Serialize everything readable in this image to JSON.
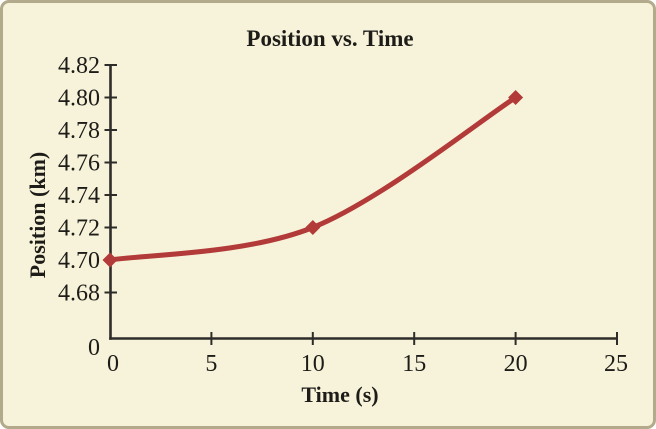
{
  "chart_data": {
    "type": "line",
    "title": "Position vs. Time",
    "xlabel": "Time (s)",
    "ylabel": "Position (km)",
    "x": [
      0,
      10,
      20
    ],
    "y": [
      4.7,
      4.72,
      4.8
    ],
    "x_ticks": [
      0,
      5,
      10,
      15,
      20,
      25
    ],
    "x_tick_labels": [
      "0",
      "5",
      "10",
      "15",
      "20",
      "25"
    ],
    "y_ticks": [
      4.82,
      4.8,
      4.78,
      4.76,
      4.74,
      4.72,
      4.7,
      4.68
    ],
    "y_tick_labels": [
      "4.82",
      "4.80",
      "4.78",
      "4.76",
      "4.74",
      "4.72",
      "4.70",
      "4.68"
    ],
    "y_origin_label": "0",
    "xlim": [
      0,
      25
    ],
    "ylim": [
      4.68,
      4.82
    ],
    "grid": false,
    "legend": null,
    "axis_break": true,
    "line_color": "#b23a38",
    "marker": "diamond"
  },
  "colors": {
    "background": "#f7f3da",
    "border": "#b3a98b",
    "axis": "#2e2c28",
    "text": "#1e1c18",
    "series": "#b23a38"
  }
}
